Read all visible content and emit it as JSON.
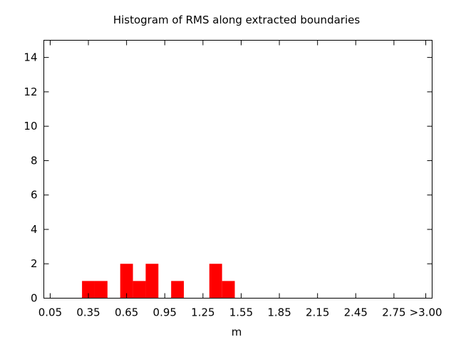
{
  "chart_data": {
    "type": "bar",
    "title": "Histogram of RMS along extracted boundaries",
    "xlabel": "m",
    "ylabel": "",
    "ylim": [
      0,
      15
    ],
    "yticks": [
      0,
      2,
      4,
      6,
      8,
      10,
      12,
      14
    ],
    "xlim": [
      0.0,
      3.05
    ],
    "xtick_labels": [
      {
        "value": 0.05,
        "label": "0.05"
      },
      {
        "value": 0.35,
        "label": "0.35"
      },
      {
        "value": 0.65,
        "label": "0.65"
      },
      {
        "value": 0.95,
        "label": "0.95"
      },
      {
        "value": 1.25,
        "label": "1.25"
      },
      {
        "value": 1.55,
        "label": "1.55"
      },
      {
        "value": 1.85,
        "label": "1.85"
      },
      {
        "value": 2.15,
        "label": "2.15"
      },
      {
        "value": 2.45,
        "label": "2.45"
      },
      {
        "value": 2.75,
        "label": "2.75"
      },
      {
        "value": 3.0,
        "label": ">3.00"
      }
    ],
    "bin_width": 0.1,
    "bins": [
      {
        "center": 0.35,
        "count": 1
      },
      {
        "center": 0.45,
        "count": 1
      },
      {
        "center": 0.65,
        "count": 2
      },
      {
        "center": 0.75,
        "count": 1
      },
      {
        "center": 0.85,
        "count": 2
      },
      {
        "center": 1.05,
        "count": 1
      },
      {
        "center": 1.35,
        "count": 2
      },
      {
        "center": 1.45,
        "count": 1
      }
    ],
    "bar_color": "#ff0000",
    "grid": false,
    "legend": "none"
  }
}
